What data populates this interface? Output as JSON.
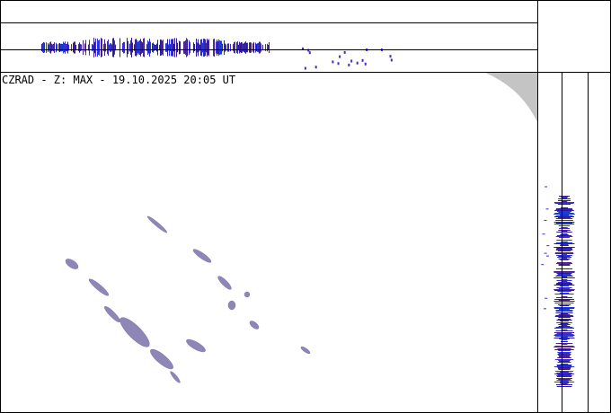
{
  "header": {
    "title": "CZRAD - Z: MAX - 19.10.2025 20:05 UT"
  }
}
